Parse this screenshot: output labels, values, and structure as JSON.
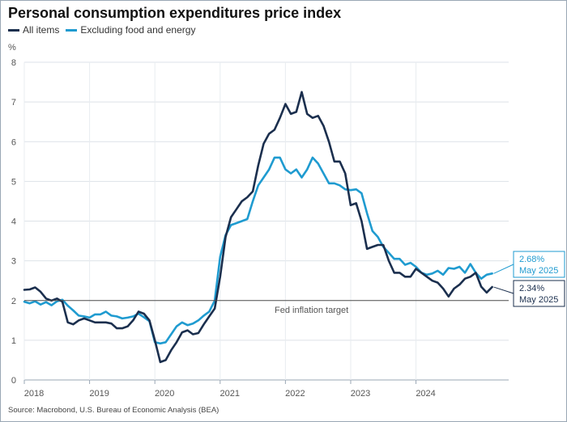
{
  "chart_data": {
    "type": "line",
    "title": "Personal consumption expenditures price index",
    "ylabel": "%",
    "source": "Source: Macrobond, U.S. Bureau of Economic Analysis (BEA)",
    "ylim": [
      0,
      8
    ],
    "yticks": [
      "0",
      "1",
      "2",
      "3",
      "4",
      "5",
      "6",
      "7",
      "8"
    ],
    "xlim": [
      2018.0,
      2025.42
    ],
    "xticks": [
      {
        "label": "2018",
        "x": 2018.0
      },
      {
        "label": "2019",
        "x": 2019.0
      },
      {
        "label": "2020",
        "x": 2020.0
      },
      {
        "label": "2021",
        "x": 2021.0
      },
      {
        "label": "2022",
        "x": 2022.0
      },
      {
        "label": "2023",
        "x": 2023.0
      },
      {
        "label": "2024",
        "x": 2024.0
      }
    ],
    "grid": true,
    "legend_position": "top-left",
    "reference_line": {
      "label": "Fed inflation target",
      "y": 2
    },
    "series": [
      {
        "name": "All items",
        "color": "#1b2f4e",
        "x_start": 2018.0,
        "x_step": 0.08333,
        "values": [
          2.27,
          2.28,
          2.33,
          2.22,
          2.05,
          2.0,
          2.05,
          1.97,
          1.45,
          1.4,
          1.5,
          1.55,
          1.5,
          1.45,
          1.45,
          1.45,
          1.42,
          1.3,
          1.3,
          1.35,
          1.5,
          1.72,
          1.67,
          1.5,
          1.0,
          0.45,
          0.5,
          0.75,
          0.95,
          1.2,
          1.25,
          1.15,
          1.18,
          1.4,
          1.6,
          1.8,
          2.6,
          3.6,
          4.1,
          4.3,
          4.5,
          4.6,
          4.75,
          5.4,
          5.95,
          6.2,
          6.3,
          6.6,
          6.95,
          6.7,
          6.75,
          7.25,
          6.7,
          6.6,
          6.65,
          6.4,
          6.0,
          5.5,
          5.5,
          5.2,
          4.4,
          4.45,
          4.0,
          3.3,
          3.35,
          3.4,
          3.4,
          3.0,
          2.7,
          2.7,
          2.6,
          2.6,
          2.8,
          2.7,
          2.6,
          2.5,
          2.45,
          2.3,
          2.1,
          2.3,
          2.4,
          2.55,
          2.6,
          2.7,
          2.35,
          2.2,
          2.34
        ]
      },
      {
        "name": "Excluding food and energy",
        "color": "#1f9bd0",
        "x_start": 2018.0,
        "x_step": 0.08333,
        "values": [
          1.97,
          1.93,
          1.98,
          1.9,
          1.96,
          1.88,
          1.98,
          2.02,
          1.87,
          1.75,
          1.62,
          1.6,
          1.57,
          1.65,
          1.65,
          1.72,
          1.62,
          1.6,
          1.55,
          1.57,
          1.6,
          1.67,
          1.58,
          1.48,
          0.95,
          0.92,
          0.95,
          1.15,
          1.35,
          1.45,
          1.38,
          1.42,
          1.5,
          1.62,
          1.72,
          2.0,
          3.1,
          3.65,
          3.9,
          3.95,
          4.0,
          4.05,
          4.5,
          4.9,
          5.1,
          5.3,
          5.6,
          5.6,
          5.3,
          5.2,
          5.3,
          5.1,
          5.3,
          5.6,
          5.45,
          5.2,
          4.95,
          4.95,
          4.9,
          4.8,
          4.78,
          4.8,
          4.7,
          4.2,
          3.75,
          3.6,
          3.35,
          3.2,
          3.05,
          3.05,
          2.9,
          2.95,
          2.85,
          2.7,
          2.65,
          2.68,
          2.75,
          2.65,
          2.82,
          2.8,
          2.85,
          2.7,
          2.92,
          2.7,
          2.55,
          2.65,
          2.68
        ]
      }
    ],
    "callouts": [
      {
        "series": 1,
        "line1": "2.68%",
        "line2": "May 2025",
        "color": "#1f9bd0"
      },
      {
        "series": 0,
        "line1": "2.34%",
        "line2": "May 2025",
        "color": "#1b2f4e"
      }
    ]
  }
}
